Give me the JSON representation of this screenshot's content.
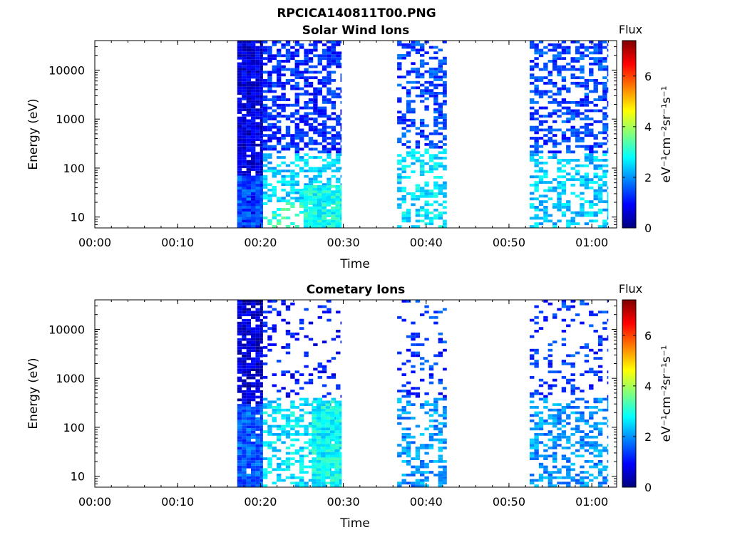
{
  "figure": {
    "file_title": "RPCICA140811T00.PNG"
  },
  "colormap": {
    "name": "jet",
    "stops": [
      "#00007f",
      "#0000ff",
      "#007fff",
      "#00ffff",
      "#7fff7f",
      "#ffff00",
      "#ff7f00",
      "#ff0000",
      "#7f0000"
    ]
  },
  "chart_data": [
    {
      "type": "heatmap",
      "title": "Solar Wind Ions",
      "xlabel": "Time",
      "ylabel": "Energy (eV)",
      "x_ticks": [
        "00:00",
        "00:10",
        "00:20",
        "00:30",
        "00:40",
        "00:50",
        "01:00"
      ],
      "x_tick_minutes": [
        0,
        10,
        20,
        30,
        40,
        50,
        60
      ],
      "xlim_minutes": [
        0,
        63
      ],
      "y_scale": "log",
      "y_ticks": [
        "10",
        "100",
        "1000",
        "10000"
      ],
      "y_tick_values": [
        10,
        100,
        1000,
        10000
      ],
      "ylim": [
        6,
        40000
      ],
      "colorbar": {
        "label": "Flux",
        "unit": "eV⁻¹cm⁻²sr⁻¹s⁻¹",
        "range": [
          0,
          7.4
        ],
        "ticks": [
          "0",
          "2",
          "4",
          "6"
        ],
        "tick_values": [
          0,
          2,
          4,
          6
        ]
      },
      "blocks": [
        {
          "t_start": 17.2,
          "t_end": 20.3,
          "e_min": 6,
          "e_max": 40000,
          "flux": 0.7,
          "fill": 0.95
        },
        {
          "t_start": 17.2,
          "t_end": 20.3,
          "e_min": 6,
          "e_max": 70,
          "flux": 1.5,
          "fill": 0.95
        },
        {
          "t_start": 20.3,
          "t_end": 29.8,
          "e_min": 200,
          "e_max": 40000,
          "flux": 1.2,
          "fill": 0.6
        },
        {
          "t_start": 20.3,
          "t_end": 29.8,
          "e_min": 20,
          "e_max": 200,
          "flux": 2.4,
          "fill": 0.55
        },
        {
          "t_start": 20.3,
          "t_end": 29.8,
          "e_min": 6,
          "e_max": 20,
          "flux": 3.1,
          "fill": 0.45
        },
        {
          "t_start": 25.2,
          "t_end": 29.8,
          "e_min": 6,
          "e_max": 45,
          "flux": 2.9,
          "fill": 0.95
        },
        {
          "t_start": 36.5,
          "t_end": 42.5,
          "e_min": 250,
          "e_max": 40000,
          "flux": 1.4,
          "fill": 0.45
        },
        {
          "t_start": 36.5,
          "t_end": 42.5,
          "e_min": 6,
          "e_max": 250,
          "flux": 2.6,
          "fill": 0.45
        },
        {
          "t_start": 52.5,
          "t_end": 62.0,
          "e_min": 200,
          "e_max": 40000,
          "flux": 1.4,
          "fill": 0.5
        },
        {
          "t_start": 52.5,
          "t_end": 62.0,
          "e_min": 6,
          "e_max": 200,
          "flux": 2.4,
          "fill": 0.45
        }
      ]
    },
    {
      "type": "heatmap",
      "title": "Cometary Ions",
      "xlabel": "Time",
      "ylabel": "Energy (eV)",
      "x_ticks": [
        "00:00",
        "00:10",
        "00:20",
        "00:30",
        "00:40",
        "00:50",
        "01:00"
      ],
      "x_tick_minutes": [
        0,
        10,
        20,
        30,
        40,
        50,
        60
      ],
      "xlim_minutes": [
        0,
        63
      ],
      "y_scale": "log",
      "y_ticks": [
        "10",
        "100",
        "1000",
        "10000"
      ],
      "y_tick_values": [
        10,
        100,
        1000,
        10000
      ],
      "ylim": [
        6,
        40000
      ],
      "colorbar": {
        "label": "Flux",
        "unit": "eV⁻¹cm⁻²sr⁻¹s⁻¹",
        "range": [
          0,
          7.4
        ],
        "ticks": [
          "0",
          "2",
          "4",
          "6"
        ],
        "tick_values": [
          0,
          2,
          4,
          6
        ]
      },
      "blocks": [
        {
          "t_start": 17.2,
          "t_end": 20.3,
          "e_min": 300,
          "e_max": 40000,
          "flux": 0.6,
          "fill": 0.8
        },
        {
          "t_start": 17.2,
          "t_end": 20.3,
          "e_min": 6,
          "e_max": 300,
          "flux": 1.6,
          "fill": 0.95
        },
        {
          "t_start": 20.3,
          "t_end": 29.8,
          "e_min": 400,
          "e_max": 40000,
          "flux": 1.0,
          "fill": 0.2
        },
        {
          "t_start": 20.3,
          "t_end": 29.8,
          "e_min": 6,
          "e_max": 400,
          "flux": 2.6,
          "fill": 0.5
        },
        {
          "t_start": 26.2,
          "t_end": 29.8,
          "e_min": 6,
          "e_max": 350,
          "flux": 2.8,
          "fill": 0.95
        },
        {
          "t_start": 36.5,
          "t_end": 42.5,
          "e_min": 400,
          "e_max": 40000,
          "flux": 1.3,
          "fill": 0.18
        },
        {
          "t_start": 36.5,
          "t_end": 42.5,
          "e_min": 6,
          "e_max": 400,
          "flux": 2.0,
          "fill": 0.4
        },
        {
          "t_start": 52.5,
          "t_end": 62.0,
          "e_min": 400,
          "e_max": 40000,
          "flux": 1.3,
          "fill": 0.2
        },
        {
          "t_start": 52.5,
          "t_end": 62.0,
          "e_min": 6,
          "e_max": 400,
          "flux": 2.0,
          "fill": 0.45
        }
      ]
    }
  ]
}
